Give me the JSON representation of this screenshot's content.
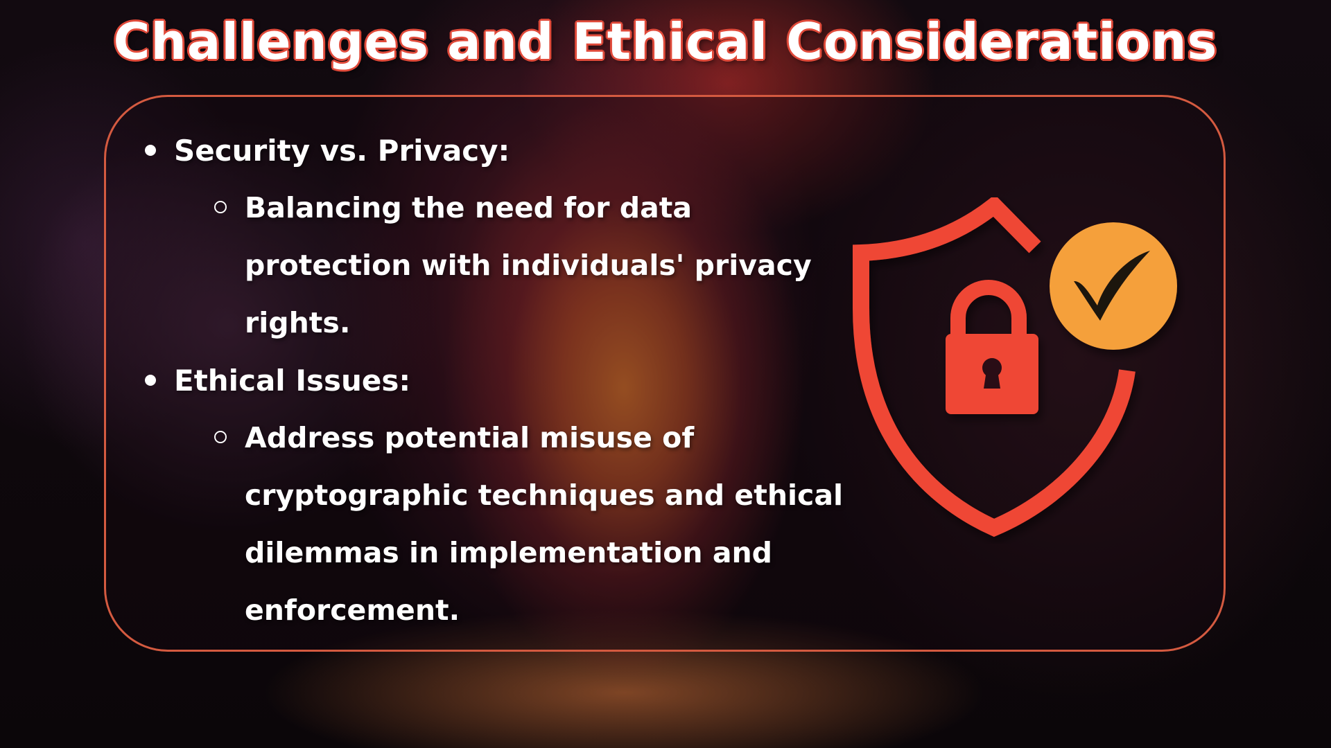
{
  "slide": {
    "title": "Challenges and Ethical Considerations",
    "items": [
      {
        "heading": "Security vs. Privacy:",
        "detail": "Balancing the need for data protection with individuals' privacy rights."
      },
      {
        "heading": "Ethical Issues:",
        "detail": "Address potential misuse of cryptographic techniques and ethical dilemmas in implementation and enforcement."
      }
    ]
  },
  "graphic": {
    "icons": [
      "shield-icon",
      "padlock-icon",
      "checkmark-badge-icon"
    ],
    "colors": {
      "shield": "#ef4634",
      "lock": "#ef4634",
      "badge": "#f5a03a",
      "check": "#1e1210",
      "title_outline": "#e04a3a",
      "panel_border": "#d45a40"
    }
  }
}
